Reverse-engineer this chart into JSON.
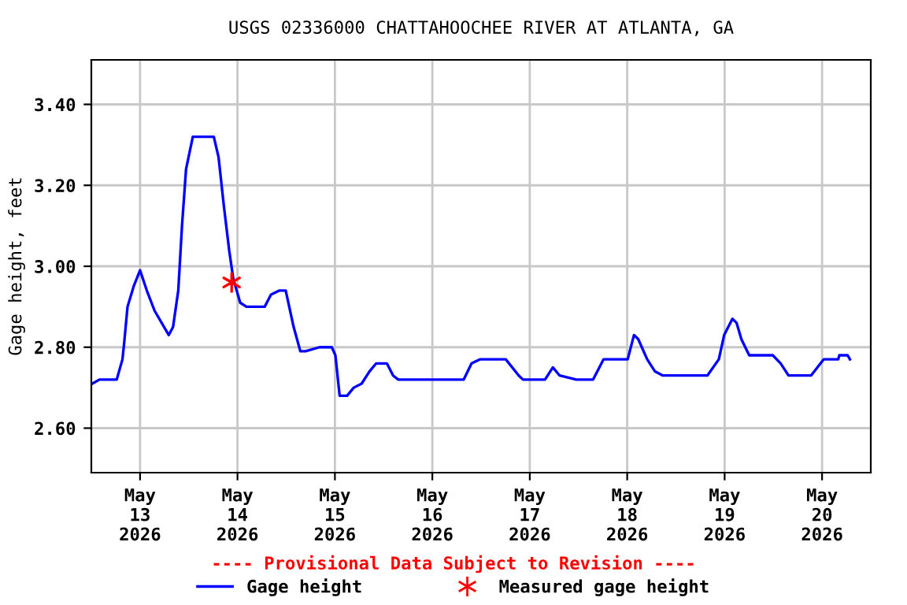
{
  "chart_data": {
    "type": "line",
    "title": "USGS 02336000 CHATTAHOOCHEE RIVER AT ATLANTA, GA",
    "ylabel": "Gage height, feet",
    "annotations": [
      "---- Provisional Data Subject to Revision ----"
    ],
    "xlim": [
      "2026-05-12T12:00",
      "2026-05-20T12:00"
    ],
    "xticks": [
      {
        "value": "2026-05-13",
        "label": "May\n13\n2026"
      },
      {
        "value": "2026-05-14",
        "label": "May\n14\n2026"
      },
      {
        "value": "2026-05-15",
        "label": "May\n15\n2026"
      },
      {
        "value": "2026-05-16",
        "label": "May\n16\n2026"
      },
      {
        "value": "2026-05-17",
        "label": "May\n17\n2026"
      },
      {
        "value": "2026-05-18",
        "label": "May\n18\n2026"
      },
      {
        "value": "2026-05-19",
        "label": "May\n19\n2026"
      },
      {
        "value": "2026-05-20",
        "label": "May\n20\n2026"
      }
    ],
    "ylim": [
      2.49,
      3.51
    ],
    "yticks": [
      {
        "value": 2.6,
        "label": "2.60"
      },
      {
        "value": 2.8,
        "label": "2.80"
      },
      {
        "value": 3.0,
        "label": "3.00"
      },
      {
        "value": 3.2,
        "label": "3.20"
      },
      {
        "value": 3.4,
        "label": "3.40"
      }
    ],
    "grid": true,
    "legend": "bottom",
    "series": [
      {
        "name": "Gage height",
        "color": "#0000ff",
        "marker": "none",
        "x": [
          "2026-05-12T12:15",
          "2026-05-12T14:00",
          "2026-05-12T18:15",
          "2026-05-12T19:40",
          "2026-05-12T20:05",
          "2026-05-12T20:55",
          "2026-05-12T22:25",
          "2026-05-13T00:00",
          "2026-05-13T01:40",
          "2026-05-13T03:35",
          "2026-05-13T05:55",
          "2026-05-13T07:05",
          "2026-05-13T08:08",
          "2026-05-13T09:25",
          "2026-05-13T10:20",
          "2026-05-13T11:20",
          "2026-05-13T13:00",
          "2026-05-13T18:10",
          "2026-05-13T19:20",
          "2026-05-13T20:38",
          "2026-05-13T21:57",
          "2026-05-13T22:57",
          "2026-05-14T00:40",
          "2026-05-14T02:12",
          "2026-05-14T06:42",
          "2026-05-14T08:15",
          "2026-05-14T10:20",
          "2026-05-14T11:53",
          "2026-05-14T13:50",
          "2026-05-14T15:29",
          "2026-05-14T16:45",
          "2026-05-14T20:14",
          "2026-05-14T23:14",
          "2026-05-15T00:07",
          "2026-05-15T01:10",
          "2026-05-15T03:00",
          "2026-05-15T04:38",
          "2026-05-15T06:35",
          "2026-05-15T08:30",
          "2026-05-15T10:10",
          "2026-05-15T12:48",
          "2026-05-15T14:20",
          "2026-05-15T15:36",
          "2026-05-16T07:44",
          "2026-05-16T09:40",
          "2026-05-16T11:43",
          "2026-05-16T18:05",
          "2026-05-16T21:17",
          "2026-05-16T22:20",
          "2026-05-17T03:45",
          "2026-05-17T05:41",
          "2026-05-17T07:21",
          "2026-05-17T11:28",
          "2026-05-17T15:36",
          "2026-05-17T18:10",
          "2026-05-18T00:07",
          "2026-05-18T01:40",
          "2026-05-18T02:43",
          "2026-05-18T04:55",
          "2026-05-18T06:51",
          "2026-05-18T08:47",
          "2026-05-18T19:45",
          "2026-05-18T22:34",
          "2026-05-18T23:53",
          "2026-05-19T01:55",
          "2026-05-19T02:57",
          "2026-05-19T04:07",
          "2026-05-19T06:03",
          "2026-05-19T11:52",
          "2026-05-19T13:48",
          "2026-05-19T15:44",
          "2026-05-19T21:17",
          "2026-05-20T00:23",
          "2026-05-20T03:59",
          "2026-05-20T04:15",
          "2026-05-20T06:18",
          "2026-05-20T06:52"
        ],
        "values": [
          2.71,
          2.72,
          2.72,
          2.77,
          2.81,
          2.9,
          2.95,
          2.99,
          2.94,
          2.89,
          2.85,
          2.83,
          2.85,
          2.94,
          3.1,
          3.24,
          3.32,
          3.32,
          3.27,
          3.15,
          3.04,
          2.97,
          2.91,
          2.9,
          2.9,
          2.93,
          2.94,
          2.94,
          2.85,
          2.79,
          2.79,
          2.8,
          2.8,
          2.78,
          2.68,
          2.68,
          2.7,
          2.71,
          2.74,
          2.76,
          2.76,
          2.73,
          2.72,
          2.72,
          2.76,
          2.77,
          2.77,
          2.73,
          2.72,
          2.72,
          2.75,
          2.73,
          2.72,
          2.72,
          2.77,
          2.77,
          2.83,
          2.82,
          2.77,
          2.74,
          2.73,
          2.73,
          2.77,
          2.83,
          2.87,
          2.86,
          2.82,
          2.78,
          2.78,
          2.76,
          2.73,
          2.73,
          2.77,
          2.77,
          2.78,
          2.78,
          2.77
        ]
      },
      {
        "name": "Measured gage height",
        "type": "scatter",
        "color": "#ff0000",
        "marker": "cross",
        "x": [
          "2026-05-13T22:34"
        ],
        "values": [
          2.96
        ]
      }
    ]
  }
}
